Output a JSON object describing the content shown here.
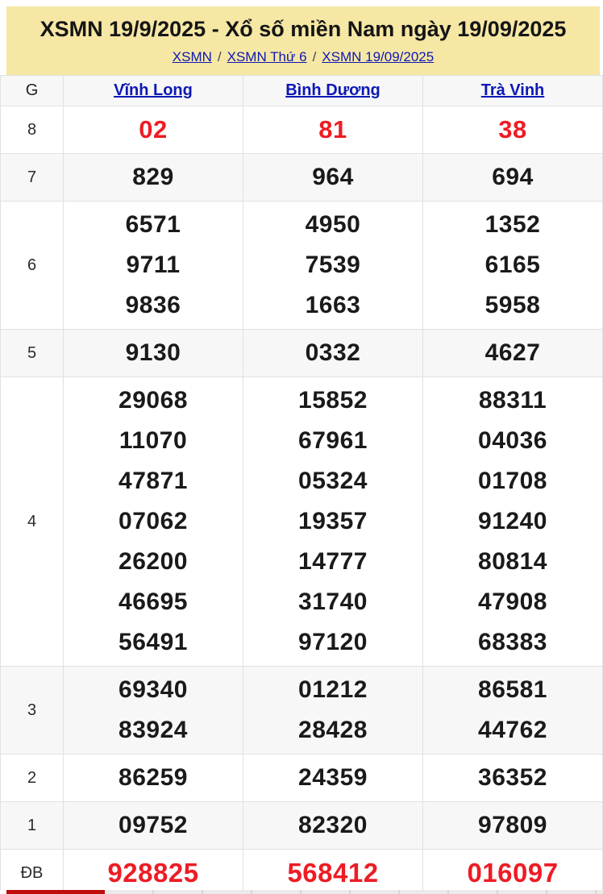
{
  "header": {
    "title": "XSMN 19/9/2025 - Xổ số miền Nam ngày 19/09/2025",
    "separator": "/",
    "breadcrumb": [
      {
        "label": "XSMN"
      },
      {
        "label": "XSMN Thứ 6"
      },
      {
        "label": "XSMN 19/09/2025"
      }
    ]
  },
  "table": {
    "corner_label": "G",
    "columns": [
      "Vĩnh Long",
      "Bình Dương",
      "Trà Vinh"
    ],
    "rows": [
      {
        "prize": "8",
        "cells": [
          [
            "02"
          ],
          [
            "81"
          ],
          [
            "38"
          ]
        ]
      },
      {
        "prize": "7",
        "cells": [
          [
            "829"
          ],
          [
            "964"
          ],
          [
            "694"
          ]
        ]
      },
      {
        "prize": "6",
        "cells": [
          [
            "6571",
            "9711",
            "9836"
          ],
          [
            "4950",
            "7539",
            "1663"
          ],
          [
            "1352",
            "6165",
            "5958"
          ]
        ]
      },
      {
        "prize": "5",
        "cells": [
          [
            "9130"
          ],
          [
            "0332"
          ],
          [
            "4627"
          ]
        ]
      },
      {
        "prize": "4",
        "cells": [
          [
            "29068",
            "11070",
            "47871",
            "07062",
            "26200",
            "46695",
            "56491"
          ],
          [
            "15852",
            "67961",
            "05324",
            "19357",
            "14777",
            "31740",
            "97120"
          ],
          [
            "88311",
            "04036",
            "01708",
            "91240",
            "80814",
            "47908",
            "68383"
          ]
        ]
      },
      {
        "prize": "3",
        "cells": [
          [
            "69340",
            "83924"
          ],
          [
            "01212",
            "28428"
          ],
          [
            "86581",
            "44762"
          ]
        ]
      },
      {
        "prize": "2",
        "cells": [
          [
            "86259"
          ],
          [
            "24359"
          ],
          [
            "36352"
          ]
        ]
      },
      {
        "prize": "1",
        "cells": [
          [
            "09752"
          ],
          [
            "82320"
          ],
          [
            "97809"
          ]
        ]
      },
      {
        "prize": "ĐB",
        "cells": [
          [
            "928825"
          ],
          [
            "568412"
          ],
          [
            "016097"
          ]
        ]
      }
    ]
  },
  "colors": {
    "header_background": "#f6e7a4",
    "link_blue": "#0d18b5",
    "highlight_red": "#ed1c24",
    "active_strip_red": "#c00d0d",
    "alt_row_gray": "#f7f7f7"
  }
}
